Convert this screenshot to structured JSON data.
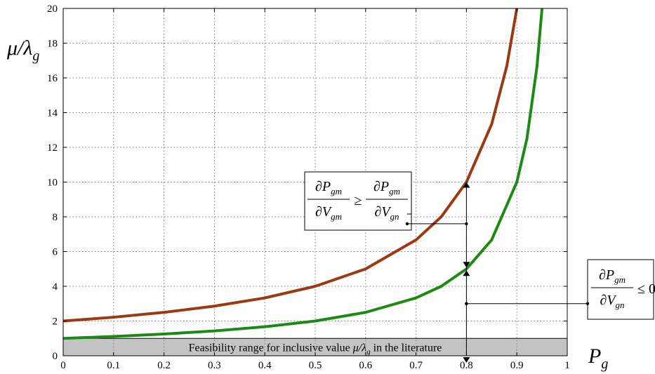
{
  "chart_data": {
    "type": "line",
    "title": "",
    "xlabel": {
      "base": "P",
      "sub": "g"
    },
    "ylabel": {
      "base": "μ/λ",
      "sub": "g"
    },
    "xlim": [
      0,
      1
    ],
    "ylim": [
      0,
      20
    ],
    "x_ticks": [
      0,
      0.1,
      0.2,
      0.3,
      0.4,
      0.5,
      0.6,
      0.7,
      0.8,
      0.9,
      1
    ],
    "x_tick_labels": [
      "0",
      "0.1",
      "0.2",
      "0.3",
      "0.4",
      "0.5",
      "0.6",
      "0.7",
      "0.8",
      "0.9",
      "1"
    ],
    "y_ticks": [
      0,
      2,
      4,
      6,
      8,
      10,
      12,
      14,
      16,
      18,
      20
    ],
    "y_tick_labels": [
      "0",
      "2",
      "4",
      "6",
      "8",
      "10",
      "12",
      "14",
      "16",
      "18",
      "20"
    ],
    "grid": true,
    "series": [
      {
        "color": "#9b3a12",
        "x": [
          0,
          0.1,
          0.2,
          0.3,
          0.4,
          0.5,
          0.6,
          0.7,
          0.75,
          0.8,
          0.85,
          0.88,
          0.9
        ],
        "y": [
          2.0,
          2.22,
          2.5,
          2.86,
          3.33,
          4.0,
          5.0,
          6.67,
          8.0,
          10.0,
          13.33,
          16.67,
          20.0
        ]
      },
      {
        "color": "#1e8a14",
        "x": [
          0,
          0.1,
          0.2,
          0.3,
          0.4,
          0.5,
          0.6,
          0.7,
          0.75,
          0.8,
          0.85,
          0.9,
          0.92,
          0.94,
          0.95
        ],
        "y": [
          1.0,
          1.11,
          1.25,
          1.43,
          1.67,
          2.0,
          2.5,
          3.33,
          4.0,
          5.0,
          6.67,
          10.0,
          12.5,
          16.67,
          20.0
        ]
      }
    ],
    "feasibility_band": {
      "y_range": [
        0,
        1
      ],
      "color": "#c4c4c4",
      "label_text": "Feasibility range for inclusive value ",
      "label_math": "μ/λ",
      "label_sub": "g",
      "label_suffix": " in the literature"
    },
    "marker_x": 0.8,
    "marker_points_y": [
      10.0,
      7.6,
      5.0,
      3.0,
      0.0
    ],
    "annotations": [
      {
        "id": "box1",
        "num": "∂P",
        "num_sub": "gm",
        "den_left": "∂V",
        "den_left_sub": "gm",
        "op": "≥",
        "num_right": "∂P",
        "num_right_sub": "gm",
        "den_right": "∂V",
        "den_right_sub": "gn",
        "pointer_y": 7.6
      },
      {
        "id": "box2",
        "num": "∂P",
        "num_sub": "gm",
        "den": "∂V",
        "den_sub": "gn",
        "op": "≤ 0",
        "pointer_y": 3.0
      }
    ]
  }
}
